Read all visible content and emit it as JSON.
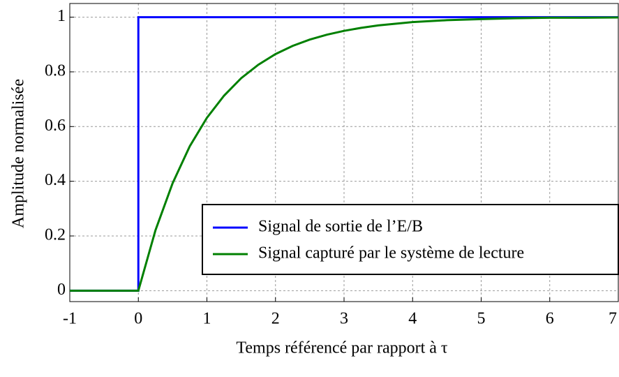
{
  "chart_data": {
    "type": "line",
    "xlabel": "Temps référencé par rapport à τ",
    "ylabel": "Amplitude normalisée",
    "xlim": [
      -1,
      7
    ],
    "ylim": [
      -0.04,
      1.05
    ],
    "xticks": [
      -1,
      0,
      1,
      2,
      3,
      4,
      5,
      6,
      7
    ],
    "yticks": [
      0,
      0.2,
      0.4,
      0.6,
      0.8,
      1
    ],
    "grid": true,
    "legend": "lower right",
    "series": [
      {
        "name": "Signal de sortie de l’E/B",
        "color": "#0000ff",
        "x": [
          -1,
          0,
          0,
          7
        ],
        "values": [
          0,
          0,
          1,
          1
        ]
      },
      {
        "name": "Signal capturé par le système de lecture",
        "color": "#008000",
        "x": [
          -1,
          0,
          0.25,
          0.5,
          0.75,
          1,
          1.25,
          1.5,
          1.75,
          2,
          2.25,
          2.5,
          2.75,
          3,
          3.25,
          3.5,
          3.75,
          4,
          4.5,
          5,
          5.5,
          6,
          6.5,
          7
        ],
        "values": [
          0,
          0,
          0.221,
          0.393,
          0.528,
          0.632,
          0.713,
          0.777,
          0.826,
          0.865,
          0.895,
          0.918,
          0.936,
          0.95,
          0.961,
          0.97,
          0.976,
          0.982,
          0.989,
          0.993,
          0.996,
          0.998,
          0.998,
          0.999
        ]
      }
    ]
  }
}
